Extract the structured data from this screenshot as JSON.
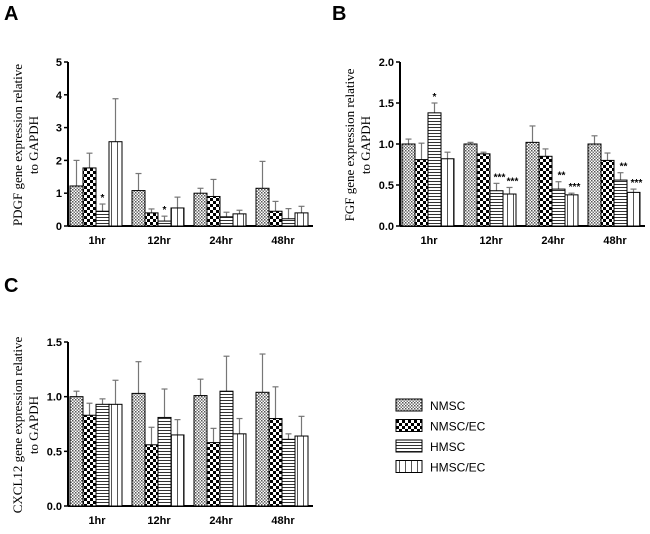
{
  "legend": [
    "NMSC",
    "NMSC/EC",
    "HMSC",
    "HMSC/EC"
  ],
  "chart_data": [
    {
      "panel": "A",
      "type": "bar",
      "ylabel_line1": "PDGF gene expression relative",
      "ylabel_line2": "to GAPDH",
      "categories": [
        "1hr",
        "12hr",
        "24hr",
        "48hr"
      ],
      "ylim": [
        0,
        5
      ],
      "yticks": [
        "0",
        "1",
        "2",
        "3",
        "4",
        "5"
      ],
      "ytick_values": [
        0,
        1,
        2,
        3,
        4,
        5
      ],
      "series": [
        {
          "name": "NMSC",
          "values": [
            1.22,
            1.08,
            1.0,
            1.15
          ],
          "err_top": [
            2.0,
            1.6,
            1.15,
            1.97
          ],
          "stars": [
            "",
            "",
            "",
            ""
          ]
        },
        {
          "name": "NMSC/EC",
          "values": [
            1.77,
            0.4,
            0.9,
            0.45
          ],
          "err_top": [
            2.22,
            0.52,
            1.42,
            0.75
          ],
          "stars": [
            "",
            "",
            "",
            ""
          ]
        },
        {
          "name": "HMSC",
          "values": [
            0.45,
            0.15,
            0.28,
            0.22
          ],
          "err_top": [
            0.67,
            0.3,
            0.42,
            0.53
          ],
          "stars": [
            "*",
            "*",
            "",
            ""
          ]
        },
        {
          "name": "HMSC/EC",
          "values": [
            2.57,
            0.55,
            0.37,
            0.4
          ],
          "err_top": [
            3.88,
            0.88,
            0.48,
            0.6
          ],
          "stars": [
            "",
            "",
            "",
            ""
          ]
        }
      ]
    },
    {
      "panel": "B",
      "type": "bar",
      "ylabel_line1": "FGF gene expression relative",
      "ylabel_line2": "to GAPDH",
      "categories": [
        "1hr",
        "12hr",
        "24hr",
        "48hr"
      ],
      "ylim": [
        0,
        2
      ],
      "yticks": [
        "0.0",
        "0.5",
        "1.0",
        "1.5",
        "2.0"
      ],
      "ytick_values": [
        0,
        0.5,
        1,
        1.5,
        2
      ],
      "series": [
        {
          "name": "NMSC",
          "values": [
            1.0,
            1.0,
            1.02,
            1.0
          ],
          "err_top": [
            1.06,
            1.02,
            1.22,
            1.1
          ],
          "stars": [
            "",
            "",
            "",
            ""
          ]
        },
        {
          "name": "NMSC/EC",
          "values": [
            0.81,
            0.88,
            0.85,
            0.8
          ],
          "err_top": [
            1.01,
            0.9,
            0.94,
            0.89
          ],
          "stars": [
            "",
            "",
            "",
            ""
          ]
        },
        {
          "name": "HMSC",
          "values": [
            1.38,
            0.43,
            0.45,
            0.56
          ],
          "err_top": [
            1.5,
            0.52,
            0.54,
            0.65
          ],
          "stars": [
            "*",
            "***",
            "**",
            "**"
          ]
        },
        {
          "name": "HMSC/EC",
          "values": [
            0.82,
            0.39,
            0.38,
            0.41
          ],
          "err_top": [
            0.9,
            0.47,
            0.4,
            0.45
          ],
          "stars": [
            "",
            "***",
            "***",
            "***"
          ]
        }
      ]
    },
    {
      "panel": "C",
      "type": "bar",
      "ylabel_line1": "CXCL12 gene expression relative",
      "ylabel_line2": "to GAPDH",
      "categories": [
        "1hr",
        "12hr",
        "24hr",
        "48hr"
      ],
      "ylim": [
        0,
        1.5
      ],
      "yticks": [
        "0.0",
        "0.5",
        "1.0",
        "1.5"
      ],
      "ytick_values": [
        0,
        0.5,
        1,
        1.5
      ],
      "series": [
        {
          "name": "NMSC",
          "values": [
            1.0,
            1.03,
            1.01,
            1.04
          ],
          "err_top": [
            1.05,
            1.32,
            1.16,
            1.39
          ],
          "stars": [
            "",
            "",
            "",
            ""
          ]
        },
        {
          "name": "NMSC/EC",
          "values": [
            0.83,
            0.56,
            0.58,
            0.8
          ],
          "err_top": [
            0.94,
            0.72,
            0.71,
            1.09
          ],
          "stars": [
            "",
            "",
            "",
            ""
          ]
        },
        {
          "name": "HMSC",
          "values": [
            0.93,
            0.81,
            1.05,
            0.61
          ],
          "err_top": [
            0.98,
            1.07,
            1.37,
            0.66
          ],
          "stars": [
            "",
            "",
            "",
            ""
          ]
        },
        {
          "name": "HMSC/EC",
          "values": [
            0.93,
            0.65,
            0.66,
            0.64
          ],
          "err_top": [
            1.15,
            0.79,
            0.8,
            0.82
          ],
          "stars": [
            "",
            "",
            "",
            ""
          ]
        }
      ]
    }
  ]
}
